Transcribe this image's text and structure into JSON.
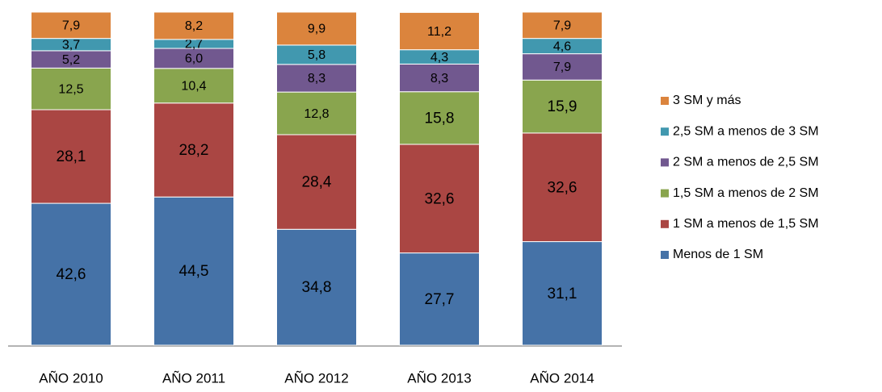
{
  "chart_data": {
    "type": "stacked_bar",
    "categories": [
      "AÑO 2010",
      "AÑO 2011",
      "AÑO 2012",
      "AÑO 2013",
      "AÑO 2014"
    ],
    "ylim": [
      0,
      100
    ],
    "series": [
      {
        "name": "Menos de 1 SM",
        "color": "#4572a7",
        "values": [
          42.6,
          44.5,
          34.8,
          27.7,
          31.1
        ],
        "value_labels": [
          "42,6",
          "44,5",
          "34,8",
          "27,7",
          "31,1"
        ]
      },
      {
        "name": "1 SM a menos de 1,5 SM",
        "color": "#aa4643",
        "values": [
          28.1,
          28.2,
          28.4,
          32.6,
          32.6
        ],
        "value_labels": [
          "28,1",
          "28,2",
          "28,4",
          "32,6",
          "32,6"
        ]
      },
      {
        "name": "1,5 SM a menos de 2 SM",
        "color": "#89a54e",
        "values": [
          12.5,
          10.4,
          12.8,
          15.8,
          15.9
        ],
        "value_labels": [
          "12,5",
          "10,4",
          "12,8",
          "15,8",
          "15,9"
        ]
      },
      {
        "name": "2 SM a menos de 2,5 SM",
        "color": "#71588f",
        "values": [
          5.2,
          6.0,
          8.3,
          8.3,
          7.9
        ],
        "value_labels": [
          "5,2",
          "6,0",
          "8,3",
          "8,3",
          "7,9"
        ]
      },
      {
        "name": "2,5 SM a menos de 3 SM",
        "color": "#4198af",
        "values": [
          3.7,
          2.7,
          5.8,
          4.3,
          4.6
        ],
        "value_labels": [
          "3,7",
          "2,7",
          "5,8",
          "4,3",
          "4,6"
        ]
      },
      {
        "name": "3 SM y más",
        "color": "#db843d",
        "values": [
          7.9,
          8.2,
          9.9,
          11.2,
          7.9
        ],
        "value_labels": [
          "7,9",
          "8,2",
          "9,9",
          "11,2",
          "7,9"
        ]
      }
    ],
    "legend": "right"
  }
}
